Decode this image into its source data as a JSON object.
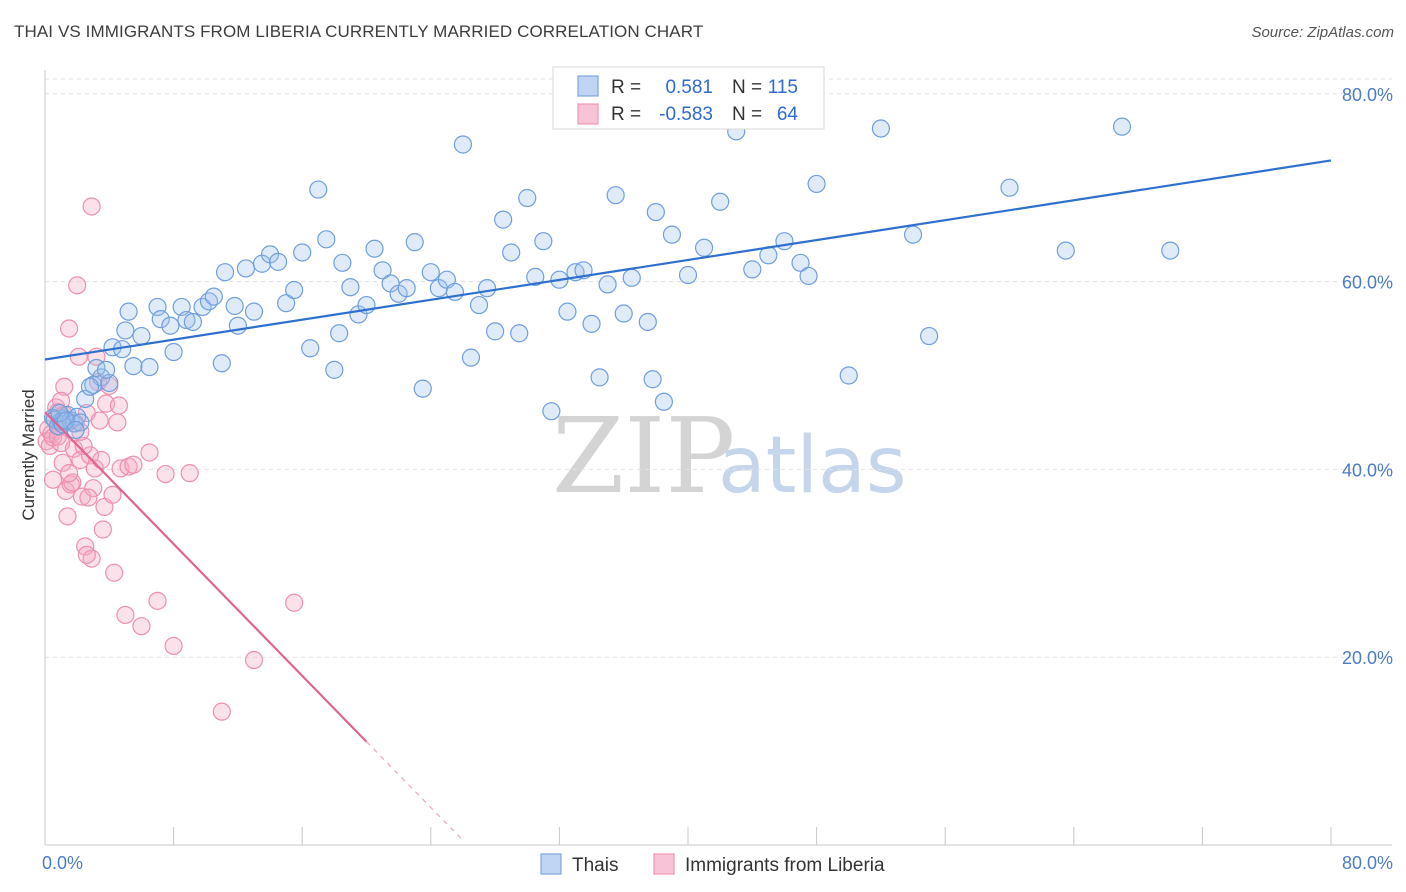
{
  "title": "THAI VS IMMIGRANTS FROM LIBERIA CURRENTLY MARRIED CORRELATION CHART",
  "source": "Source: ZipAtlas.com",
  "watermark": {
    "zip": "ZIP",
    "atlas": "atlas"
  },
  "colors": {
    "blue": "#6f9fdc",
    "blue_line": "#2f6fce",
    "pink": "#ee8fb0",
    "pink_line": "#e2638f",
    "tick": "#4a7cc7"
  },
  "legend": {
    "rows": [
      {
        "r_label": "R =",
        "r_value": "0.581",
        "n_label": "N =",
        "n_value": "115"
      },
      {
        "r_label": "R =",
        "r_value": "-0.583",
        "n_label": "N =",
        "n_value": "64"
      }
    ]
  },
  "bottom_legend": [
    "Thais",
    "Immigrants from Liberia"
  ],
  "chart_data": {
    "type": "scatter",
    "ylabel": "Currently Married",
    "xlabel": "",
    "xlim": [
      0,
      80
    ],
    "ylim": [
      0,
      82
    ],
    "x_tick_labels": [
      "0.0%",
      "80.0%"
    ],
    "y_tick_labels": [
      "20.0%",
      "40.0%",
      "60.0%",
      "80.0%"
    ],
    "y_ticks": [
      20,
      40,
      60,
      80
    ],
    "x_minor_ticks": [
      0,
      8,
      16,
      24,
      32,
      40,
      48,
      56,
      64,
      72,
      80
    ],
    "grid": "horizontal-dashed",
    "legend_position": "top-center",
    "series": [
      {
        "name": "Thais",
        "trend": {
          "x": [
            0,
            80
          ],
          "y": [
            51.7,
            72.9
          ]
        },
        "points": [
          [
            0.5,
            45.5
          ],
          [
            0.6,
            45.3
          ],
          [
            0.8,
            44.6
          ],
          [
            1.0,
            45.1
          ],
          [
            1.2,
            45.4
          ],
          [
            1.4,
            45.8
          ],
          [
            1.6,
            45.2
          ],
          [
            1.8,
            44.9
          ],
          [
            2.0,
            45.6
          ],
          [
            2.2,
            45.0
          ],
          [
            1.1,
            44.8
          ],
          [
            0.9,
            46.0
          ],
          [
            1.3,
            45.2
          ],
          [
            2.5,
            47.5
          ],
          [
            3.0,
            49.0
          ],
          [
            3.5,
            49.8
          ],
          [
            4.2,
            53.0
          ],
          [
            4.8,
            52.8
          ],
          [
            5.0,
            54.8
          ],
          [
            5.2,
            56.8
          ],
          [
            3.2,
            50.8
          ],
          [
            4.0,
            49.2
          ],
          [
            5.5,
            51.0
          ],
          [
            6.0,
            54.2
          ],
          [
            6.5,
            50.9
          ],
          [
            7.0,
            57.3
          ],
          [
            7.2,
            56.0
          ],
          [
            7.8,
            55.3
          ],
          [
            8.0,
            52.5
          ],
          [
            8.5,
            57.3
          ],
          [
            8.8,
            55.9
          ],
          [
            9.2,
            55.7
          ],
          [
            9.8,
            57.3
          ],
          [
            10.2,
            57.9
          ],
          [
            10.5,
            58.4
          ],
          [
            11.0,
            51.3
          ],
          [
            11.2,
            61.0
          ],
          [
            11.8,
            57.4
          ],
          [
            12.0,
            55.3
          ],
          [
            12.5,
            61.4
          ],
          [
            13.0,
            56.8
          ],
          [
            13.5,
            61.9
          ],
          [
            14.0,
            62.9
          ],
          [
            14.5,
            62.1
          ],
          [
            15.0,
            57.7
          ],
          [
            15.5,
            59.1
          ],
          [
            16.0,
            63.1
          ],
          [
            16.5,
            52.9
          ],
          [
            17.0,
            69.8
          ],
          [
            17.5,
            64.5
          ],
          [
            18.0,
            50.6
          ],
          [
            18.3,
            54.5
          ],
          [
            18.5,
            62.0
          ],
          [
            19.0,
            59.4
          ],
          [
            19.5,
            56.5
          ],
          [
            20.0,
            57.5
          ],
          [
            20.5,
            63.5
          ],
          [
            21.0,
            61.2
          ],
          [
            21.5,
            59.8
          ],
          [
            22.0,
            58.7
          ],
          [
            22.5,
            59.3
          ],
          [
            23.0,
            64.2
          ],
          [
            23.5,
            48.6
          ],
          [
            24.0,
            61.0
          ],
          [
            24.5,
            59.3
          ],
          [
            25.0,
            60.2
          ],
          [
            25.5,
            58.9
          ],
          [
            26.0,
            74.6
          ],
          [
            26.5,
            51.9
          ],
          [
            27.0,
            57.5
          ],
          [
            27.5,
            59.3
          ],
          [
            28.0,
            54.7
          ],
          [
            28.5,
            66.6
          ],
          [
            29.0,
            63.1
          ],
          [
            29.5,
            54.5
          ],
          [
            30.0,
            68.9
          ],
          [
            30.5,
            60.5
          ],
          [
            31.0,
            64.3
          ],
          [
            31.5,
            46.2
          ],
          [
            32.0,
            60.2
          ],
          [
            32.5,
            56.8
          ],
          [
            33.0,
            61.0
          ],
          [
            33.5,
            61.2
          ],
          [
            34.0,
            55.5
          ],
          [
            34.5,
            49.8
          ],
          [
            35.0,
            59.7
          ],
          [
            35.5,
            69.2
          ],
          [
            36.0,
            56.6
          ],
          [
            36.5,
            60.4
          ],
          [
            37.5,
            55.7
          ],
          [
            37.8,
            49.6
          ],
          [
            38.0,
            67.4
          ],
          [
            38.5,
            47.2
          ],
          [
            39.0,
            65.0
          ],
          [
            40.0,
            60.7
          ],
          [
            41.0,
            63.6
          ],
          [
            42.0,
            68.5
          ],
          [
            43.0,
            76.0
          ],
          [
            44.0,
            61.3
          ],
          [
            45.0,
            62.8
          ],
          [
            46.0,
            64.3
          ],
          [
            47.0,
            62.0
          ],
          [
            47.5,
            60.6
          ],
          [
            48.0,
            70.4
          ],
          [
            50.0,
            50.0
          ],
          [
            52.0,
            76.3
          ],
          [
            54.0,
            65.0
          ],
          [
            55.0,
            54.2
          ],
          [
            60.0,
            70.0
          ],
          [
            63.5,
            63.3
          ],
          [
            67.0,
            76.5
          ],
          [
            70.0,
            63.3
          ],
          [
            2.8,
            48.8
          ],
          [
            1.9,
            44.2
          ],
          [
            3.8,
            50.6
          ]
        ]
      },
      {
        "name": "Immigrants from Liberia",
        "trend": {
          "x": [
            0,
            20
          ],
          "y": [
            46.1,
            11.0
          ]
        },
        "trend_dashed": {
          "x": [
            20,
            26
          ],
          "y": [
            11.0,
            0.5
          ]
        },
        "points": [
          [
            0.1,
            43.0
          ],
          [
            0.2,
            44.3
          ],
          [
            0.3,
            42.5
          ],
          [
            0.4,
            43.8
          ],
          [
            0.5,
            43.4
          ],
          [
            0.6,
            45.4
          ],
          [
            0.7,
            46.6
          ],
          [
            0.8,
            43.5
          ],
          [
            0.9,
            44.6
          ],
          [
            1.0,
            42.8
          ],
          [
            1.1,
            40.7
          ],
          [
            1.2,
            48.8
          ],
          [
            1.3,
            37.7
          ],
          [
            1.4,
            35.0
          ],
          [
            1.5,
            55.0
          ],
          [
            1.6,
            38.4
          ],
          [
            1.8,
            42.2
          ],
          [
            2.0,
            59.6
          ],
          [
            2.1,
            52.0
          ],
          [
            2.2,
            41.0
          ],
          [
            2.3,
            37.1
          ],
          [
            2.5,
            31.8
          ],
          [
            2.6,
            46.0
          ],
          [
            2.8,
            41.5
          ],
          [
            2.9,
            30.5
          ],
          [
            3.0,
            38.0
          ],
          [
            3.1,
            40.1
          ],
          [
            3.2,
            52.0
          ],
          [
            3.3,
            49.3
          ],
          [
            3.5,
            41.0
          ],
          [
            3.6,
            33.6
          ],
          [
            3.7,
            36.0
          ],
          [
            3.8,
            47.0
          ],
          [
            4.0,
            48.9
          ],
          [
            4.2,
            37.3
          ],
          [
            4.3,
            29.0
          ],
          [
            4.5,
            45.0
          ],
          [
            4.6,
            46.8
          ],
          [
            4.7,
            40.1
          ],
          [
            5.0,
            24.5
          ],
          [
            5.2,
            40.3
          ],
          [
            5.5,
            40.5
          ],
          [
            6.0,
            23.3
          ],
          [
            6.5,
            41.8
          ],
          [
            7.0,
            26.0
          ],
          [
            7.5,
            39.5
          ],
          [
            8.0,
            21.2
          ],
          [
            9.0,
            39.6
          ],
          [
            11.0,
            14.2
          ],
          [
            13.0,
            19.7
          ],
          [
            15.5,
            25.8
          ],
          [
            2.9,
            68.0
          ],
          [
            1.7,
            38.6
          ],
          [
            2.4,
            42.5
          ],
          [
            0.5,
            38.9
          ],
          [
            1.0,
            47.3
          ],
          [
            1.9,
            44.9
          ],
          [
            2.6,
            30.9
          ],
          [
            3.4,
            45.2
          ],
          [
            1.5,
            39.6
          ],
          [
            0.8,
            46.1
          ],
          [
            1.2,
            45.8
          ],
          [
            2.2,
            44.0
          ],
          [
            2.7,
            37.0
          ]
        ]
      }
    ]
  }
}
